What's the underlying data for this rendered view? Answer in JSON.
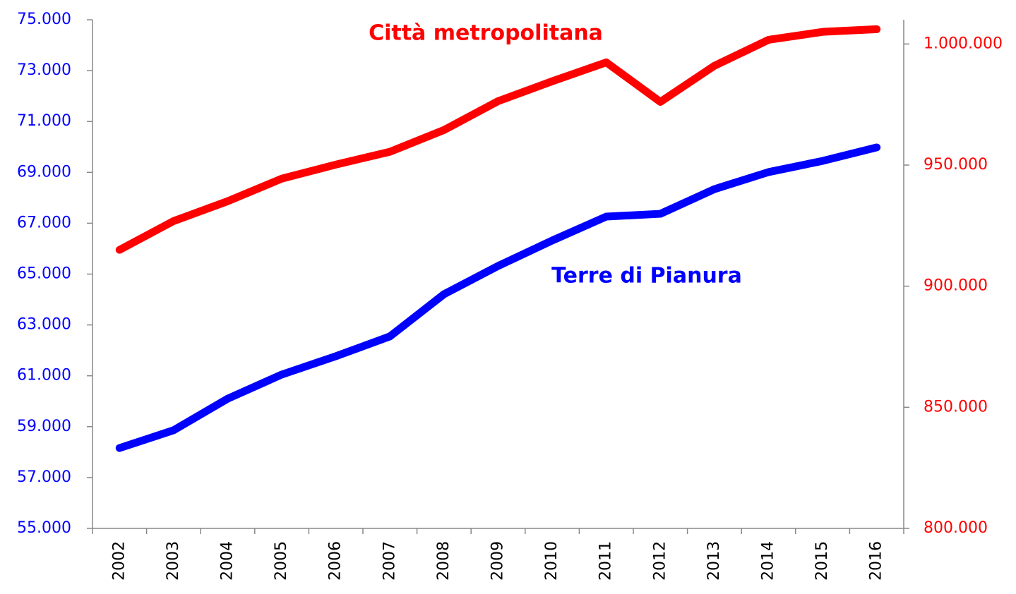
{
  "chart_data": {
    "type": "line",
    "categories": [
      "2002",
      "2003",
      "2004",
      "2005",
      "2006",
      "2007",
      "2008",
      "2009",
      "2010",
      "2011",
      "2012",
      "2013",
      "2014",
      "2015",
      "2016"
    ],
    "series": [
      {
        "name": "Terre di Pianura",
        "color": "#0000ff",
        "axis": "y",
        "values": [
          58160,
          58860,
          60100,
          61050,
          61770,
          62550,
          64210,
          65320,
          66320,
          67260,
          67370,
          68340,
          69010,
          69450,
          69980
        ]
      },
      {
        "name": "Città metropolitana",
        "color": "#ff0000",
        "axis": "y2",
        "values": [
          915000,
          926900,
          935100,
          944400,
          950200,
          955500,
          964500,
          976400,
          984600,
          992400,
          976100,
          991000,
          1001700,
          1005000,
          1006100
        ]
      }
    ],
    "ylim": [
      55000,
      75000
    ],
    "yticks": [
      {
        "value": 55000,
        "label": "55.000"
      },
      {
        "value": 57000,
        "label": "57.000"
      },
      {
        "value": 59000,
        "label": "59.000"
      },
      {
        "value": 61000,
        "label": "61.000"
      },
      {
        "value": 63000,
        "label": "63.000"
      },
      {
        "value": 65000,
        "label": "65.000"
      },
      {
        "value": 67000,
        "label": "67.000"
      },
      {
        "value": 69000,
        "label": "69.000"
      },
      {
        "value": 71000,
        "label": "71.000"
      },
      {
        "value": 73000,
        "label": "73.000"
      },
      {
        "value": 75000,
        "label": "75.000"
      }
    ],
    "y2lim": [
      800000,
      1010000
    ],
    "y2ticks": [
      {
        "value": 800000,
        "label": "800.000"
      },
      {
        "value": 850000,
        "label": "850.000"
      },
      {
        "value": 900000,
        "label": "900.000"
      },
      {
        "value": 950000,
        "label": "950.000"
      },
      {
        "value": 1000000,
        "label": "1.000.000"
      }
    ]
  }
}
